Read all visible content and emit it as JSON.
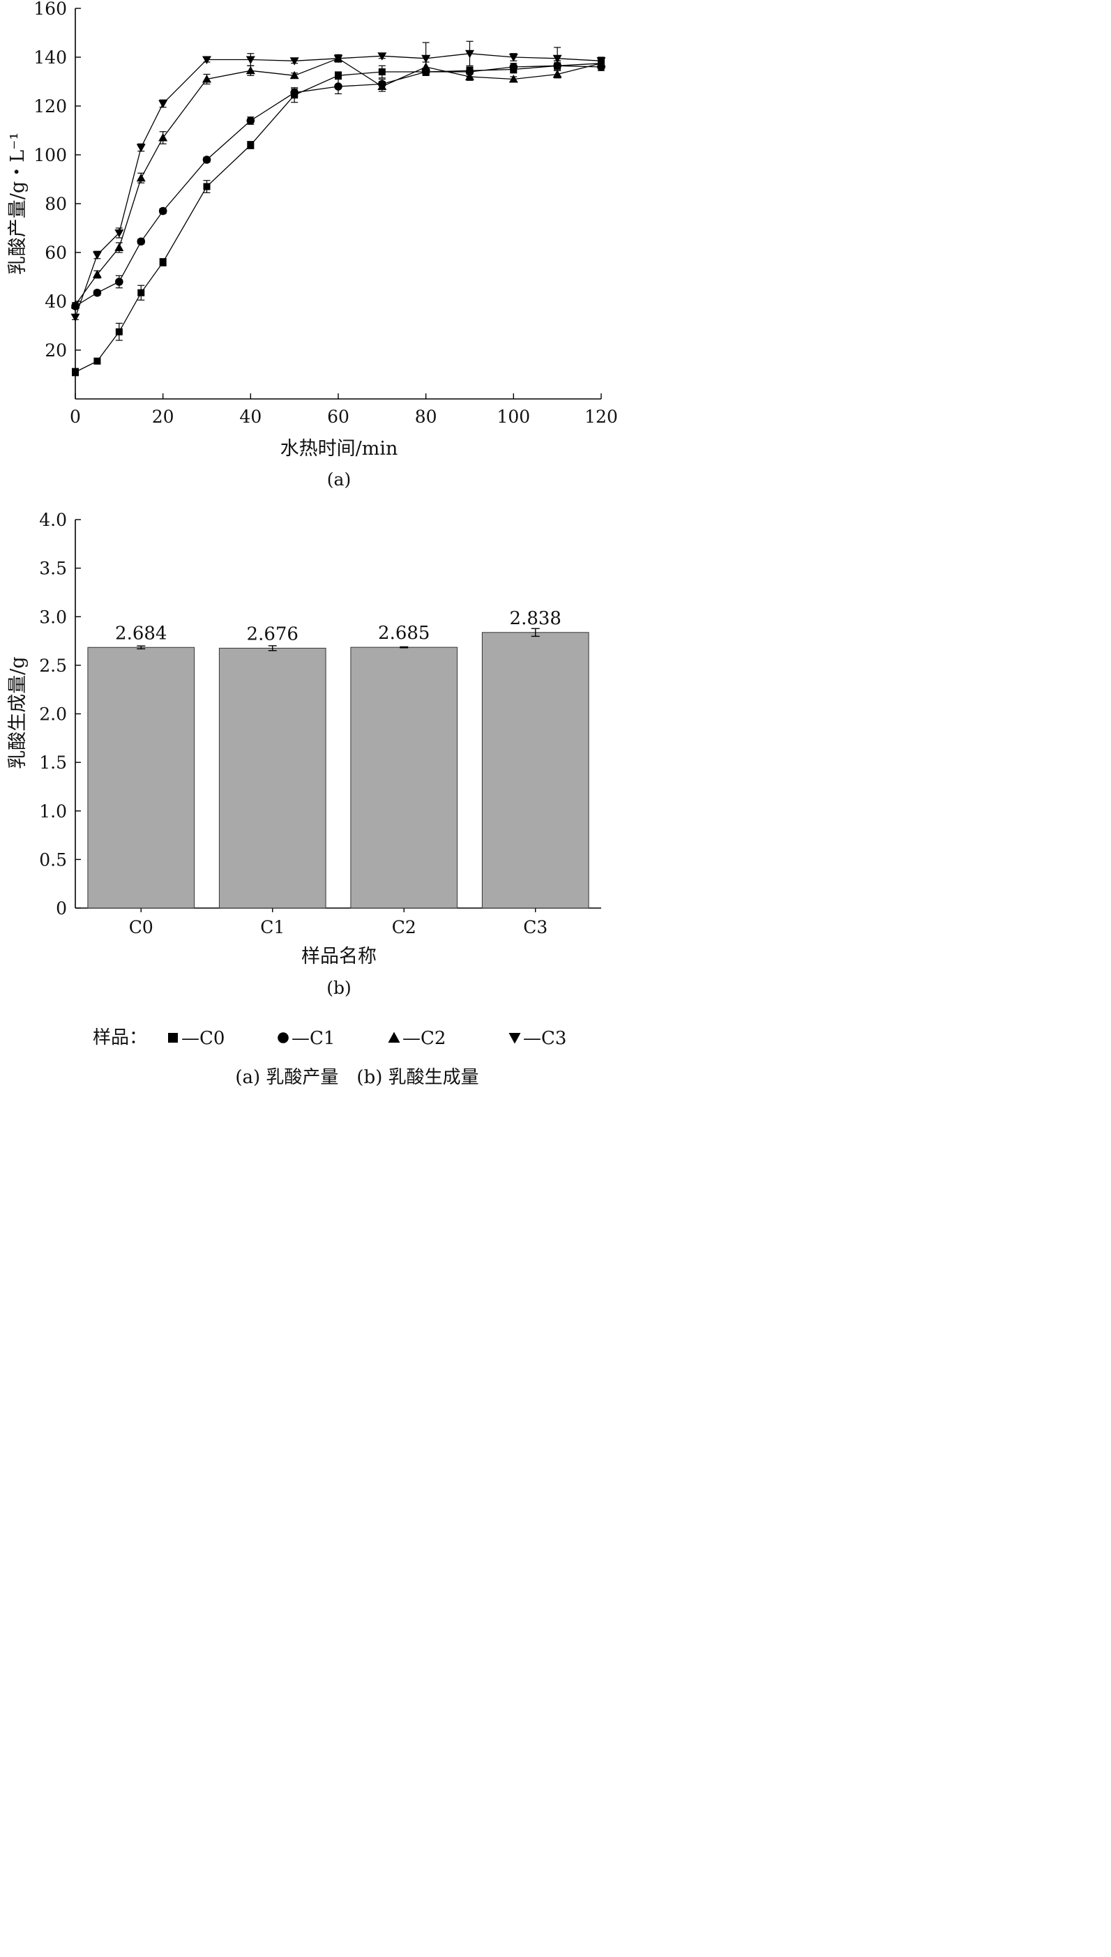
{
  "chart_data": [
    {
      "type": "line",
      "panel_caption": "(a)",
      "xlabel": "水热时间/min",
      "ylabel": "乳酸产量/g・L⁻¹",
      "xlim": [
        0,
        120
      ],
      "ylim": [
        0,
        160
      ],
      "xticks": [
        0,
        20,
        40,
        60,
        80,
        100,
        120
      ],
      "yticks": [
        20,
        40,
        60,
        80,
        100,
        120,
        140,
        160
      ],
      "grid": false,
      "series": [
        {
          "name": "C0",
          "marker": "square",
          "x": [
            0,
            5,
            10,
            15,
            20,
            30,
            40,
            50,
            60,
            70,
            80,
            90,
            100,
            110,
            120
          ],
          "y": [
            11,
            15.5,
            27.5,
            43.5,
            56,
            87,
            104,
            124.5,
            132.5,
            134,
            134,
            134.5,
            135,
            136.5,
            137.5
          ],
          "err": [
            1.5,
            1,
            3.5,
            3,
            1.5,
            2.5,
            1.5,
            3,
            1.5,
            2.5,
            1.5,
            1.5,
            1.5,
            2,
            1
          ]
        },
        {
          "name": "C1",
          "marker": "circle",
          "x": [
            0,
            5,
            10,
            15,
            20,
            30,
            40,
            50,
            60,
            70,
            80,
            90,
            100,
            110,
            120
          ],
          "y": [
            38,
            43.5,
            48,
            64.5,
            77,
            98,
            114,
            125.5,
            128,
            129,
            134,
            134,
            136,
            136.5,
            136
          ],
          "err": [
            1,
            1,
            2.5,
            1,
            1,
            1,
            1.5,
            1.5,
            3,
            2,
            1.5,
            2,
            1.5,
            2,
            1.5
          ]
        },
        {
          "name": "C2",
          "marker": "triangle-up",
          "x": [
            0,
            5,
            10,
            15,
            20,
            30,
            40,
            50,
            60,
            70,
            80,
            90,
            100,
            110,
            120
          ],
          "y": [
            38.5,
            51,
            62,
            90.5,
            107,
            131,
            134.5,
            132.5,
            139.5,
            128,
            136,
            132,
            131,
            133,
            137.5
          ],
          "err": [
            1,
            1.5,
            2,
            2,
            2.5,
            2,
            2,
            1,
            1.5,
            2,
            2,
            1.5,
            1,
            1.5,
            1.5
          ]
        },
        {
          "name": "C3",
          "marker": "triangle-down",
          "x": [
            0,
            5,
            10,
            15,
            20,
            30,
            40,
            50,
            60,
            70,
            80,
            90,
            100,
            110,
            120
          ],
          "y": [
            33.5,
            59,
            68,
            103,
            121,
            139,
            139,
            138.5,
            139.5,
            140.5,
            139.5,
            141.5,
            140,
            139.5,
            138.5
          ],
          "err": [
            1,
            1.5,
            2,
            1.5,
            1.5,
            1,
            2.5,
            1,
            1.5,
            1,
            6.5,
            5,
            1.5,
            4.5,
            1.5
          ]
        }
      ]
    },
    {
      "type": "bar",
      "panel_caption": "(b)",
      "xlabel": "样品名称",
      "ylabel": "乳酸生成量/g",
      "categories": [
        "C0",
        "C1",
        "C2",
        "C3"
      ],
      "values": [
        2.684,
        2.676,
        2.685,
        2.838
      ],
      "value_labels": [
        "2.684",
        "2.676",
        "2.685",
        "2.838"
      ],
      "err": [
        0.015,
        0.025,
        0.005,
        0.04
      ],
      "ylim": [
        0,
        4.0
      ],
      "yticks": [
        "0",
        "0.5",
        "1.0",
        "1.5",
        "2.0",
        "2.5",
        "3.0",
        "3.5",
        "4.0"
      ],
      "bar_color": "#a9a9a9",
      "grid": false
    }
  ],
  "legend": {
    "title": "样品：",
    "entries": [
      {
        "marker": "square",
        "label": "—C0"
      },
      {
        "marker": "circle",
        "label": "—C1"
      },
      {
        "marker": "triangle-up",
        "label": "—C2"
      },
      {
        "marker": "triangle-down",
        "label": "—C3"
      }
    ]
  },
  "caption": "(a) 乳酸产量　(b) 乳酸生成量"
}
